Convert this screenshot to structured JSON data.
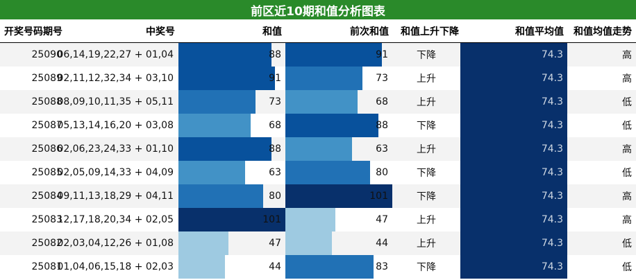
{
  "title": "前区近10期和值分析图表",
  "headers": {
    "issue": "开奖号码期号",
    "numbers": "中奖号",
    "sum": "和值",
    "prev_sum": "前次和值",
    "change": "和值上升下降",
    "avg": "和值平均值",
    "trend": "和值均值走势"
  },
  "rows": [
    {
      "issue": "25090",
      "numbers": "06,14,19,22,27 + 01,04",
      "sum": "88",
      "prev_sum": "91",
      "change": "下降",
      "avg": "74.3",
      "trend": "高"
    },
    {
      "issue": "25089",
      "numbers": "02,11,12,32,34 + 03,10",
      "sum": "91",
      "prev_sum": "73",
      "change": "上升",
      "avg": "74.3",
      "trend": "高"
    },
    {
      "issue": "25088",
      "numbers": "08,09,10,11,35 + 05,11",
      "sum": "73",
      "prev_sum": "68",
      "change": "上升",
      "avg": "74.3",
      "trend": "低"
    },
    {
      "issue": "25087",
      "numbers": "05,13,14,16,20 + 03,08",
      "sum": "68",
      "prev_sum": "88",
      "change": "下降",
      "avg": "74.3",
      "trend": "低"
    },
    {
      "issue": "25086",
      "numbers": "02,06,23,24,33 + 01,10",
      "sum": "88",
      "prev_sum": "63",
      "change": "上升",
      "avg": "74.3",
      "trend": "高"
    },
    {
      "issue": "25085",
      "numbers": "02,05,09,14,33 + 04,09",
      "sum": "63",
      "prev_sum": "80",
      "change": "下降",
      "avg": "74.3",
      "trend": "低"
    },
    {
      "issue": "25084",
      "numbers": "09,11,13,18,29 + 04,11",
      "sum": "80",
      "prev_sum": "101",
      "change": "下降",
      "avg": "74.3",
      "trend": "高"
    },
    {
      "issue": "25083",
      "numbers": "12,17,18,20,34 + 02,05",
      "sum": "101",
      "prev_sum": "47",
      "change": "上升",
      "avg": "74.3",
      "trend": "高"
    },
    {
      "issue": "25082",
      "numbers": "02,03,04,12,26 + 01,08",
      "sum": "47",
      "prev_sum": "44",
      "change": "上升",
      "avg": "74.3",
      "trend": "低"
    },
    {
      "issue": "25081",
      "numbers": "01,04,06,15,18 + 02,03",
      "sum": "44",
      "prev_sum": "83",
      "change": "下降",
      "avg": "74.3",
      "trend": "低"
    }
  ],
  "chart_data": {
    "type": "table",
    "title": "前区近10期和值分析图表",
    "columns": [
      "开奖号码期号",
      "中奖号",
      "和值",
      "前次和值",
      "和值上升下降",
      "和值平均值",
      "和值均值走势"
    ],
    "sum_values": [
      88,
      91,
      73,
      68,
      88,
      63,
      80,
      101,
      47,
      44
    ],
    "prev_sum_values": [
      91,
      73,
      68,
      88,
      63,
      80,
      101,
      47,
      44,
      83
    ],
    "average": 74.3,
    "bar_scale_max": 101
  },
  "colors": {
    "title_bg": "#2a8a2a",
    "row_alt": "#f3f3f3",
    "avg_fill": "#08306b",
    "colormap": [
      "#9ecae1",
      "#6baed6",
      "#4292c6",
      "#2171b5",
      "#08519c",
      "#08306b"
    ]
  }
}
